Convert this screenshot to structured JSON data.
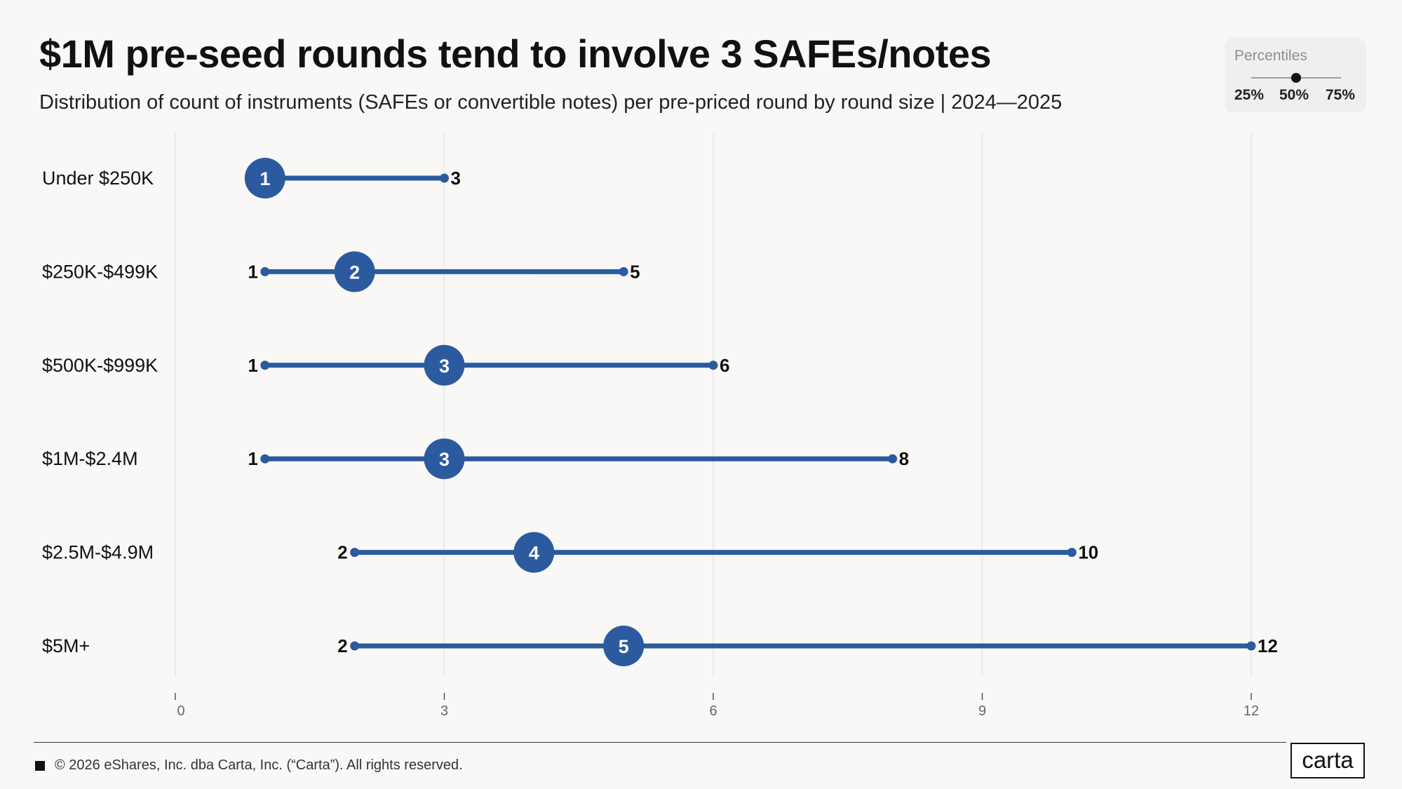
{
  "header": {
    "title": "$1M pre-seed rounds tend to involve 3 SAFEs/notes",
    "subtitle": "Distribution of count of instruments (SAFEs or convertible notes) per pre-priced round by round size |  2024—2025"
  },
  "legend": {
    "title": "Percentiles",
    "p25": "25%",
    "p50": "50%",
    "p75": "75%"
  },
  "footer": {
    "copyright": "© 2026 eShares, Inc. dba Carta, Inc. (“Carta”). All rights reserved.",
    "logo_text": "carta"
  },
  "colors": {
    "accent": "#2b5a9e",
    "grid": "#e8e6e4"
  },
  "chart_data": {
    "type": "dumbbell",
    "xlim": [
      0,
      12
    ],
    "xticks": [
      0,
      3,
      6,
      9,
      12
    ],
    "grid": true,
    "categories": [
      "Under $250K",
      "$250K-$499K",
      "$500K-$999K",
      "$1M-$2.4M",
      "$2.5M-$4.9M",
      "$5M+"
    ],
    "p25": [
      1,
      1,
      1,
      1,
      2,
      2
    ],
    "p50": [
      1,
      2,
      3,
      3,
      4,
      5
    ],
    "p75": [
      3,
      5,
      6,
      8,
      10,
      12
    ]
  }
}
